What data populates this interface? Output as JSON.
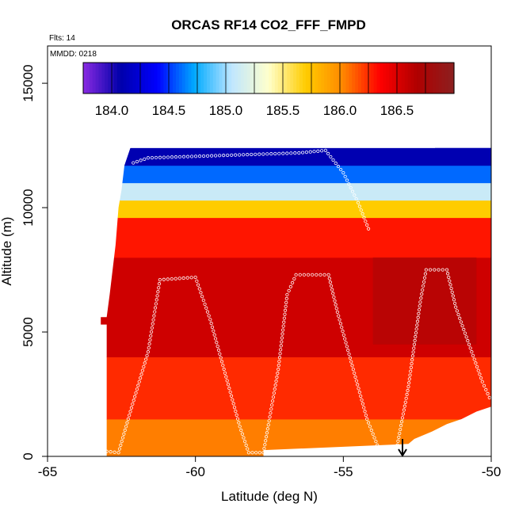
{
  "chart_data": {
    "type": "heatmap",
    "title": "ORCAS RF14 CO2_FFF_FMPD",
    "annotations": {
      "flights": "Flts: 14",
      "date": "MMDD: 0218"
    },
    "xlabel": "Latitude (deg N)",
    "ylabel": "Altitude (m)",
    "xlim": [
      -65,
      -50
    ],
    "ylim": [
      0,
      16500
    ],
    "x_ticks": [
      -65,
      -60,
      -55,
      -50
    ],
    "x_tick_labels": [
      "-65",
      "-60",
      "-55",
      "-50"
    ],
    "y_ticks": [
      0,
      5000,
      10000,
      15000
    ],
    "y_tick_labels": [
      "0",
      "5000",
      "10000",
      "15000"
    ],
    "colorbar": {
      "range": [
        183.75,
        187.0
      ],
      "ticks": [
        184.0,
        184.5,
        185.0,
        185.5,
        186.0,
        186.5
      ],
      "tick_labels": [
        "184.0",
        "184.5",
        "185.0",
        "185.5",
        "186.0",
        "186.5"
      ],
      "colors": [
        "#8a2be2",
        "#0000aa",
        "#0000ff",
        "#00aaff",
        "#bfe6ff",
        "#ffffcc",
        "#ffcc00",
        "#ff8800",
        "#ff0000",
        "#b00000",
        "#8b2020"
      ]
    },
    "bands": [
      {
        "alt_min": 0,
        "alt_max": 1500,
        "value": 186.05
      },
      {
        "alt_min": 1500,
        "alt_max": 4000,
        "value": 186.25
      },
      {
        "alt_min": 4000,
        "alt_max": 8000,
        "value": 186.55
      },
      {
        "alt_min": 8000,
        "alt_max": 9600,
        "value": 186.3
      },
      {
        "alt_min": 9600,
        "alt_max": 10300,
        "value": 185.7
      },
      {
        "alt_min": 10300,
        "alt_max": 11000,
        "value": 185.1
      },
      {
        "alt_min": 11000,
        "alt_max": 11700,
        "value": 184.6
      },
      {
        "alt_min": 11700,
        "alt_max": 12400,
        "value": 184.1
      }
    ],
    "flight_track": [
      {
        "lat": -63.0,
        "alt": 200
      },
      {
        "lat": -62.6,
        "alt": 150
      },
      {
        "lat": -62.2,
        "alt": 1800
      },
      {
        "lat": -61.6,
        "alt": 4200
      },
      {
        "lat": -61.2,
        "alt": 7100
      },
      {
        "lat": -60.0,
        "alt": 7200
      },
      {
        "lat": -59.5,
        "alt": 5500
      },
      {
        "lat": -58.5,
        "alt": 1200
      },
      {
        "lat": -58.2,
        "alt": 150
      },
      {
        "lat": -57.7,
        "alt": 150
      },
      {
        "lat": -57.2,
        "alt": 3500
      },
      {
        "lat": -56.9,
        "alt": 6500
      },
      {
        "lat": -56.6,
        "alt": 7300
      },
      {
        "lat": -55.5,
        "alt": 7300
      },
      {
        "lat": -55.2,
        "alt": 5800
      },
      {
        "lat": -54.2,
        "alt": 1500
      },
      {
        "lat": -53.8,
        "alt": 300
      },
      {
        "lat": -53.2,
        "alt": 300
      },
      {
        "lat": -52.8,
        "alt": 2800
      },
      {
        "lat": -52.4,
        "alt": 6200
      },
      {
        "lat": -52.2,
        "alt": 7500
      },
      {
        "lat": -51.5,
        "alt": 7500
      },
      {
        "lat": -51.2,
        "alt": 6000
      },
      {
        "lat": -50.3,
        "alt": 3000
      },
      {
        "lat": -50.0,
        "alt": 2200
      }
    ],
    "upper_track": [
      {
        "lat": -62.1,
        "alt": 11800
      },
      {
        "lat": -61.6,
        "alt": 12000
      },
      {
        "lat": -56.5,
        "alt": 12200
      },
      {
        "lat": -55.6,
        "alt": 12300
      },
      {
        "lat": -55.0,
        "alt": 11400
      },
      {
        "lat": -54.5,
        "alt": 10200
      },
      {
        "lat": -54.1,
        "alt": 9000
      }
    ],
    "end_arrow": {
      "lat": -53.0,
      "alt_top": 700,
      "alt_bottom": 0
    }
  }
}
